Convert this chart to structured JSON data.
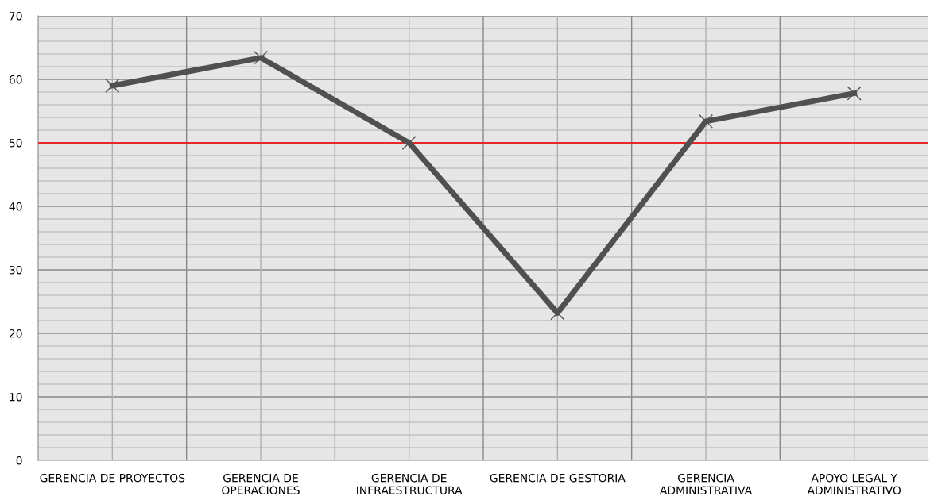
{
  "chart_data": {
    "type": "line",
    "categories": [
      "GERENCIA DE PROYECTOS",
      "GERENCIA DE OPERACIONES",
      "GERENCIA DE INFRAESTRUCTURA",
      "GERENCIA DE GESTORIA",
      "GERENCIA ADMINISTRATIVA",
      "APOYO LEGAL Y ADMINISTRATIVO"
    ],
    "series": [
      {
        "color": "#505050",
        "values": [
          59,
          63.4,
          50,
          23.2,
          53.4,
          57.8
        ]
      }
    ],
    "ylim": [
      0,
      70
    ],
    "yticks": [
      0,
      10,
      20,
      30,
      40,
      50,
      60,
      70
    ],
    "grid": true,
    "marker": "cross",
    "line_style": "solid",
    "ref_lines": [
      {
        "axis": "y",
        "value": 50,
        "color": "#ff0000"
      }
    ]
  }
}
